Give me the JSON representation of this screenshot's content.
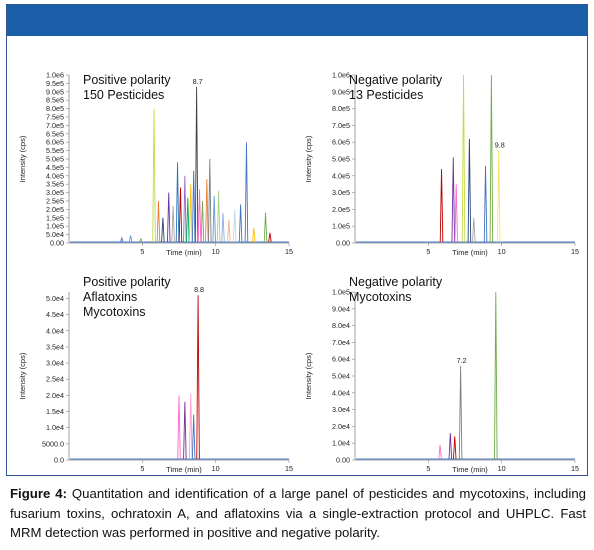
{
  "figure": {
    "caption_label": "Figure 4:",
    "caption_text": " Quantitation and identification of a large panel of pesticides and mycotoxins, including fusarium toxins, ochratoxin A, and aflatoxins via a single-extraction protocol and UHPLC. Fast MRM detection was performed in positive and negative polarity.",
    "banner_color": "#1b5fa8"
  },
  "chart_data": [
    {
      "type": "line",
      "title_lines": [
        "Positive polarity",
        "150 Pesticides"
      ],
      "xlabel": "Time (min)",
      "ylabel": "Intensity (cps)",
      "xlim": [
        0,
        15
      ],
      "ylim": [
        0,
        1000000
      ],
      "x_ticks": [
        5,
        10,
        15
      ],
      "y_ticks": [
        "0.00",
        "5.0e4",
        "1.0e5",
        "1.5e5",
        "2.0e5",
        "2.5e5",
        "3.0e5",
        "3.5e5",
        "4.0e5",
        "4.5e5",
        "5.0e5",
        "5.5e5",
        "6.0e5",
        "6.5e5",
        "7.0e5",
        "7.5e5",
        "8.0e5",
        "8.5e5",
        "9.0e5",
        "9.5e5",
        "1.0e6"
      ],
      "annotation": {
        "text": "8.7",
        "x": 8.7,
        "y": 930000
      },
      "peaks": [
        {
          "rt": 3.6,
          "h": 30000,
          "color": "#4472c4"
        },
        {
          "rt": 4.2,
          "h": 45000,
          "color": "#5b9bd5"
        },
        {
          "rt": 4.9,
          "h": 25000,
          "color": "#70ad47"
        },
        {
          "rt": 5.8,
          "h": 800000,
          "color": "#c5d94a"
        },
        {
          "rt": 6.1,
          "h": 250000,
          "color": "#ed7d31"
        },
        {
          "rt": 6.4,
          "h": 150000,
          "color": "#264478"
        },
        {
          "rt": 6.8,
          "h": 300000,
          "color": "#7030a0"
        },
        {
          "rt": 7.1,
          "h": 220000,
          "color": "#a5a5a5"
        },
        {
          "rt": 7.4,
          "h": 480000,
          "color": "#2e75b6"
        },
        {
          "rt": 7.6,
          "h": 330000,
          "color": "#c00000"
        },
        {
          "rt": 7.9,
          "h": 400000,
          "color": "#9966cc"
        },
        {
          "rt": 8.1,
          "h": 270000,
          "color": "#00b050"
        },
        {
          "rt": 8.3,
          "h": 350000,
          "color": "#ffc000"
        },
        {
          "rt": 8.5,
          "h": 430000,
          "color": "#4472c4"
        },
        {
          "rt": 8.7,
          "h": 930000,
          "color": "#404040"
        },
        {
          "rt": 8.9,
          "h": 320000,
          "color": "#ff66cc"
        },
        {
          "rt": 9.1,
          "h": 250000,
          "color": "#70ad47"
        },
        {
          "rt": 9.4,
          "h": 380000,
          "color": "#ed7d31"
        },
        {
          "rt": 9.6,
          "h": 500000,
          "color": "#7f7f7f"
        },
        {
          "rt": 9.9,
          "h": 280000,
          "color": "#5b9bd5"
        },
        {
          "rt": 10.2,
          "h": 310000,
          "color": "#a9d18e"
        },
        {
          "rt": 10.5,
          "h": 180000,
          "color": "#8faadc"
        },
        {
          "rt": 10.9,
          "h": 140000,
          "color": "#f4b183"
        },
        {
          "rt": 11.3,
          "h": 200000,
          "color": "#bdd7ee"
        },
        {
          "rt": 11.7,
          "h": 230000,
          "color": "#4472c4"
        },
        {
          "rt": 12.1,
          "h": 600000,
          "color": "#4472c4"
        },
        {
          "rt": 12.6,
          "h": 90000,
          "color": "#ffc000"
        },
        {
          "rt": 13.4,
          "h": 180000,
          "color": "#70ad47"
        },
        {
          "rt": 13.7,
          "h": 60000,
          "color": "#c00000"
        }
      ]
    },
    {
      "type": "line",
      "title_lines": [
        "Negative polarity",
        "13 Pesticides"
      ],
      "xlabel": "Time (min)",
      "ylabel": "Intensity (cps)",
      "xlim": [
        0,
        15
      ],
      "ylim": [
        0,
        1000000
      ],
      "x_ticks": [
        5,
        10,
        15
      ],
      "y_ticks": [
        "0.00",
        "1.0e5",
        "2.0e5",
        "3.0e5",
        "4.0e5",
        "5.0e5",
        "6.0e5",
        "7.0e5",
        "8.0e5",
        "9.0e5",
        "1.0e6"
      ],
      "annotation": {
        "text": "9.8",
        "x": 9.8,
        "y": 550000
      },
      "peaks": [
        {
          "rt": 5.9,
          "h": 440000,
          "color": "#c00000"
        },
        {
          "rt": 6.7,
          "h": 510000,
          "color": "#7030a0"
        },
        {
          "rt": 6.9,
          "h": 350000,
          "color": "#ff66cc"
        },
        {
          "rt": 7.4,
          "h": 1000000,
          "color": "#c5d94a"
        },
        {
          "rt": 7.8,
          "h": 620000,
          "color": "#264478"
        },
        {
          "rt": 8.1,
          "h": 150000,
          "color": "#a5a5a5"
        },
        {
          "rt": 8.9,
          "h": 460000,
          "color": "#4472c4"
        },
        {
          "rt": 9.3,
          "h": 1000000,
          "color": "#70ad47"
        },
        {
          "rt": 9.8,
          "h": 550000,
          "color": "#ffe066"
        }
      ]
    },
    {
      "type": "line",
      "title_lines": [
        "Positive polarity",
        "Aflatoxins",
        "Mycotoxins"
      ],
      "xlabel": "Time (min)",
      "ylabel": "Intensity (cps)",
      "xlim": [
        0,
        15
      ],
      "ylim": [
        0,
        52000
      ],
      "x_ticks": [
        5,
        10,
        15
      ],
      "y_ticks": [
        "0.0",
        "5000.0",
        "1.0e4",
        "1.5e4",
        "2.0e4",
        "2.5e4",
        "3.0e4",
        "3.5e4",
        "4.0e4",
        "4.5e4",
        "5.0e4"
      ],
      "annotation": {
        "text": "8.8",
        "x": 8.8,
        "y": 51000
      },
      "peaks": [
        {
          "rt": 7.5,
          "h": 20000,
          "color": "#ff66cc"
        },
        {
          "rt": 7.9,
          "h": 18000,
          "color": "#7030a0"
        },
        {
          "rt": 8.3,
          "h": 20500,
          "color": "#ff99cc"
        },
        {
          "rt": 8.5,
          "h": 14000,
          "color": "#4472c4"
        },
        {
          "rt": 8.8,
          "h": 51000,
          "color": "#c00000"
        }
      ]
    },
    {
      "type": "line",
      "title_lines": [
        "Negative polarity",
        "Mycotoxins"
      ],
      "xlabel": "Time (min)",
      "ylabel": "Intensity (cps)",
      "xlim": [
        0,
        15
      ],
      "ylim": [
        0,
        100000
      ],
      "x_ticks": [
        5,
        10,
        15
      ],
      "y_ticks": [
        "0.00",
        "1.0e4",
        "2.0e4",
        "3.0e4",
        "4.0e4",
        "5.0e4",
        "6.0e4",
        "7.0e4",
        "8.0e4",
        "9.0e4",
        "1.0e5"
      ],
      "annotation": {
        "text": "7.2",
        "x": 7.2,
        "y": 56000
      },
      "peaks": [
        {
          "rt": 5.8,
          "h": 9000,
          "color": "#ff66cc"
        },
        {
          "rt": 6.5,
          "h": 16000,
          "color": "#7030a0"
        },
        {
          "rt": 6.8,
          "h": 14000,
          "color": "#c00000"
        },
        {
          "rt": 7.2,
          "h": 56000,
          "color": "#7f7f7f"
        },
        {
          "rt": 9.6,
          "h": 100000,
          "color": "#70ad47"
        }
      ]
    }
  ]
}
